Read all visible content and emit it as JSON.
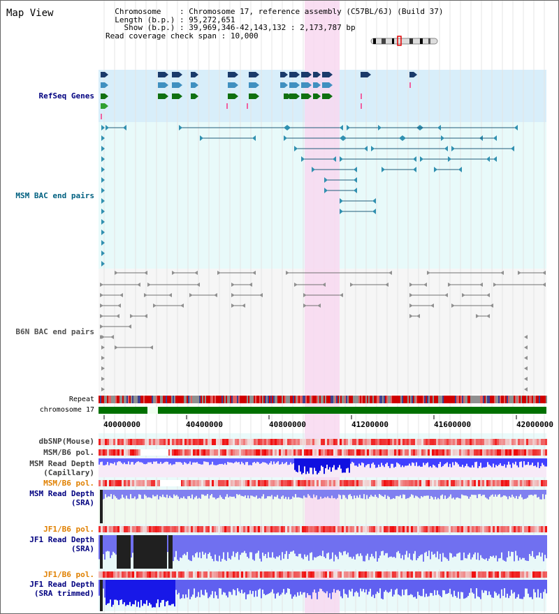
{
  "page_title": "Map View",
  "info": {
    "chromosome_label": "Chromosome",
    "chromosome_value": "Chromosome 17, reference assembly (C57BL/6J) (Build 37)",
    "length_label": "Length (b.p.)",
    "length_value": "95,272,651",
    "show_label": "Show (b.p.)",
    "show_value": "39,969,346-42,143,132 : 2,173,787 bp",
    "coverage_label": "Read coverage check span",
    "coverage_value": "10,000"
  },
  "tracks": {
    "refseq": "RefSeq Genes",
    "msm_bac": "MSM BAC end pairs",
    "b6n_bac": "B6N BAC end pairs",
    "repeat": "Repeat",
    "chromosome": "chromosome 17",
    "dbsnp": "dbSNP(Mouse)",
    "msm_b6_pol_1": "MSM/B6 pol.",
    "msm_depth_cap": "MSM Read Depth\n(Capillary)",
    "msm_b6_pol_2": "MSM/B6 pol.",
    "msm_depth_sra": "MSM Read Depth\n(SRA)",
    "jf1_b6_pol_1": "JF1/B6 pol.",
    "jf1_depth_sra": "JF1 Read Depth\n(SRA)",
    "jf1_b6_pol_2": "JF1/B6 pol.",
    "jf1_depth_trim": "JF1 Read Depth\n(SRA trimmed)"
  },
  "axis_ticks": [
    "40000000",
    "40400000",
    "40800000",
    "41200000",
    "41600000",
    "42000000"
  ],
  "colors": {
    "refseq_label": "#000080",
    "msm_label": "#006080",
    "pol_label": "#e08000",
    "depth_label": "#000080",
    "refseq_bg": "#d8eefa",
    "bac_bg": "#e8fafa",
    "highlight": "#f8d8f0",
    "chromosome": "#007000",
    "depth_blue": "#2020ff",
    "snp_red": "#e00000"
  }
}
